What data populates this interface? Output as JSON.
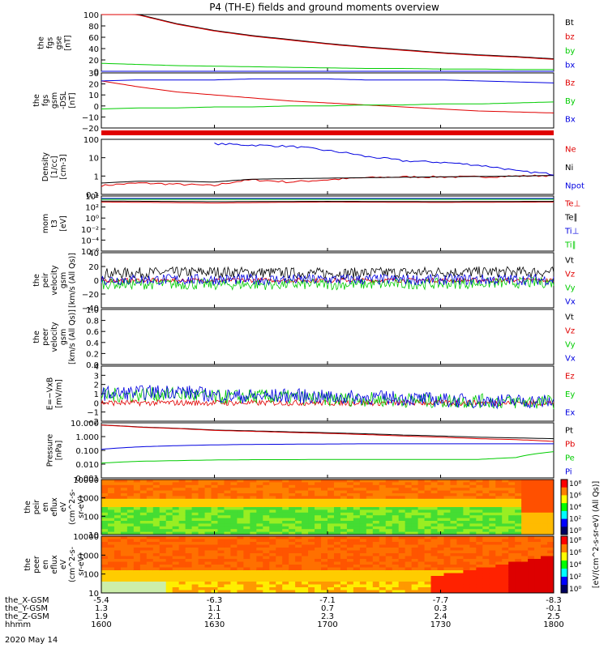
{
  "title": "P4 (TH-E) fields and ground moments overview",
  "date_label": "2020 May 14",
  "colors": {
    "black": "#000000",
    "red": "#e00000",
    "green": "#00cc00",
    "blue": "#0000e0",
    "teal": "#009090"
  },
  "ephemeris": {
    "labels": [
      "the_X-GSM",
      "the_Y-GSM",
      "the_Z-GSM",
      "hhmm"
    ],
    "columns": [
      {
        "x": "-5.4",
        "y": "1.3",
        "z": "1.9",
        "t": "1600"
      },
      {
        "x": "-6.3",
        "y": "1.1",
        "z": "2.1",
        "t": "1630"
      },
      {
        "x": "-7.1",
        "y": "0.7",
        "z": "2.3",
        "t": "1700"
      },
      {
        "x": "-7.7",
        "y": "0.3",
        "z": "2.4",
        "t": "1730"
      },
      {
        "x": "-8.3",
        "y": "-0.1",
        "z": "2.5",
        "t": "1800"
      }
    ]
  },
  "chart_data": [
    {
      "type": "line",
      "id": "fgs-gse",
      "ylabel": [
        "the",
        "fgs",
        "gse",
        "[nT]"
      ],
      "ylim": [
        0,
        100
      ],
      "y_ticks": [
        "0",
        "20",
        "40",
        "60",
        "80",
        "100"
      ],
      "x": [
        1600,
        1610,
        1620,
        1630,
        1640,
        1650,
        1700,
        1710,
        1720,
        1730,
        1740,
        1750,
        1800
      ],
      "series": [
        {
          "name": "Bt",
          "color": "black",
          "values": [
            108,
            100,
            84,
            72,
            63,
            56,
            49,
            43,
            38,
            33,
            29,
            26,
            22
          ]
        },
        {
          "name": "bz",
          "color": "red",
          "values": [
            107,
            99,
            83,
            71,
            62,
            55,
            48,
            42,
            37,
            32,
            28,
            25,
            21
          ]
        },
        {
          "name": "by",
          "color": "green",
          "values": [
            14,
            12,
            10,
            9,
            8,
            7,
            6,
            5,
            5,
            4,
            4,
            3,
            3
          ]
        },
        {
          "name": "bx",
          "color": "blue",
          "values": [
            -1,
            -2,
            -3,
            -3,
            -3,
            -2,
            -2,
            -2,
            -1,
            -1,
            -1,
            0,
            0
          ]
        }
      ]
    },
    {
      "type": "line",
      "id": "fgs-gsm",
      "ylabel": [
        "the",
        "fgs",
        "gsm",
        "-DSL",
        "[nT]"
      ],
      "ylim": [
        -25,
        30
      ],
      "y_ticks": [
        "−20",
        "−10",
        "0",
        "10",
        "20",
        "30"
      ],
      "x": [
        1600,
        1610,
        1620,
        1630,
        1640,
        1650,
        1700,
        1710,
        1720,
        1730,
        1740,
        1750,
        1800
      ],
      "series": [
        {
          "name": "Bz",
          "color": "red",
          "values": [
            22,
            16,
            11,
            8,
            5,
            2,
            0,
            -2,
            -4,
            -6,
            -8,
            -9,
            -10
          ]
        },
        {
          "name": "By",
          "color": "green",
          "values": [
            -6,
            -5,
            -5,
            -4,
            -4,
            -3,
            -3,
            -2,
            -2,
            -1,
            -1,
            0,
            1
          ]
        },
        {
          "name": "Bx",
          "color": "blue",
          "values": [
            22,
            23,
            23,
            23,
            24,
            24,
            24,
            23,
            23,
            23,
            22,
            21,
            20
          ]
        }
      ]
    },
    {
      "type": "line",
      "id": "density",
      "ylabel": [
        "Density",
        "[1/cc]",
        "[cm-3]"
      ],
      "scale": "log",
      "ylim": [
        0.05,
        300
      ],
      "y_ticks": [
        "0.1",
        "1",
        "10",
        "100"
      ],
      "x": [
        1600,
        1610,
        1620,
        1630,
        1640,
        1650,
        1700,
        1710,
        1720,
        1730,
        1740,
        1750,
        1800
      ],
      "series": [
        {
          "name": "Ne",
          "color": "red",
          "values": [
            0.2,
            0.3,
            0.25,
            0.2,
            0.5,
            0.35,
            0.5,
            0.7,
            0.8,
            0.8,
            0.8,
            0.9,
            1.0
          ]
        },
        {
          "name": "Ni",
          "color": "black",
          "values": [
            0.3,
            0.4,
            0.4,
            0.35,
            0.55,
            0.6,
            0.65,
            0.7,
            0.75,
            0.8,
            0.85,
            0.9,
            1.0
          ]
        },
        {
          "name": "Npot",
          "color": "blue",
          "values": [
            null,
            null,
            null,
            150,
            120,
            100,
            50,
            20,
            10,
            8,
            5,
            2,
            1.2
          ]
        }
      ]
    },
    {
      "type": "line",
      "id": "mom-temp",
      "ylabel": [
        "mom",
        "t3",
        "[eV]"
      ],
      "scale": "log",
      "ylim": [
        1e-08,
        10000
      ],
      "y_ticks": [
        "10⁻⁶",
        "10⁻⁴",
        "10⁻²",
        "10⁰",
        "10²",
        "10⁴"
      ],
      "x": [
        1600,
        1630,
        1700,
        1730,
        1800
      ],
      "series": [
        {
          "name": "Te⊥",
          "color": "red",
          "values": [
            500,
            300,
            500,
            400,
            500
          ]
        },
        {
          "name": "Te∥",
          "color": "black",
          "values": [
            800,
            600,
            700,
            600,
            700
          ]
        },
        {
          "name": "Ti⊥",
          "color": "blue",
          "values": [
            3000,
            3000,
            3000,
            3000,
            3000
          ]
        },
        {
          "name": "Ti∥",
          "color": "green",
          "values": [
            2000,
            2000,
            2000,
            2000,
            2000
          ]
        }
      ]
    },
    {
      "type": "line",
      "id": "peir-velocity",
      "ylabel": [
        "the",
        "peir",
        "velocity",
        "gsm",
        "[km/s (All Qs)]"
      ],
      "ylim": [
        -40,
        40
      ],
      "y_ticks": [
        "−40",
        "−20",
        "0",
        "20",
        "40"
      ],
      "x": [
        1600,
        1630,
        1700,
        1730,
        1800
      ],
      "series": [
        {
          "name": "Vt",
          "color": "black",
          "values": [
            10,
            12,
            10,
            12,
            12
          ]
        },
        {
          "name": "Vz",
          "color": "red",
          "values": [
            0,
            0,
            0,
            0,
            0
          ]
        },
        {
          "name": "Vy",
          "color": "green",
          "values": [
            -5,
            -6,
            -6,
            -5,
            -3
          ]
        },
        {
          "name": "Vx",
          "color": "blue",
          "values": [
            1,
            1,
            1,
            1,
            1
          ]
        }
      ]
    },
    {
      "type": "line",
      "id": "peer-velocity",
      "ylabel": [
        "the",
        "peer",
        "velocity",
        "gsm",
        "[km/s (All Qs)]"
      ],
      "ylim": [
        0,
        1
      ],
      "y_ticks": [
        "0.0",
        "0.2",
        "0.4",
        "0.6",
        "0.8",
        "1.0"
      ],
      "series": [
        {
          "name": "Vt",
          "color": "black",
          "values": []
        },
        {
          "name": "Vz",
          "color": "red",
          "values": []
        },
        {
          "name": "Vy",
          "color": "green",
          "values": []
        },
        {
          "name": "Vx",
          "color": "blue",
          "values": []
        }
      ]
    },
    {
      "type": "line",
      "id": "e-field",
      "ylabel": [
        "E=−VxB",
        "[mV/m]"
      ],
      "ylim": [
        -2,
        4
      ],
      "y_ticks": [
        "−2",
        "−1",
        "0",
        "1",
        "2",
        "3",
        "4"
      ],
      "x": [
        1600,
        1610,
        1620,
        1630,
        1640,
        1650,
        1700,
        1710,
        1720,
        1730,
        1740,
        1750,
        1800
      ],
      "series": [
        {
          "name": "Ez",
          "color": "red",
          "values": [
            0,
            0,
            0,
            0,
            0,
            0,
            0,
            0,
            0,
            0,
            0,
            0,
            0
          ]
        },
        {
          "name": "Ey",
          "color": "green",
          "values": [
            0.8,
            0.9,
            1.0,
            0.6,
            0.7,
            0.6,
            0.4,
            0.4,
            0.3,
            0.2,
            0.2,
            0.1,
            0.1
          ]
        },
        {
          "name": "Ex",
          "color": "blue",
          "values": [
            1.0,
            1.1,
            1.3,
            0.8,
            0.7,
            0.8,
            0.6,
            0.6,
            0.5,
            0.3,
            0.2,
            0.2,
            0.1
          ]
        }
      ]
    },
    {
      "type": "line",
      "id": "pressure",
      "ylabel": [
        "Pressure",
        "[nPa]"
      ],
      "scale": "log",
      "ylim": [
        0.001,
        10
      ],
      "y_ticks": [
        "0.001",
        "0.010",
        "0.100",
        "1.000",
        "10.000"
      ],
      "x": [
        1600,
        1610,
        1620,
        1630,
        1640,
        1650,
        1700,
        1710,
        1720,
        1730,
        1740,
        1750,
        1800
      ],
      "series": [
        {
          "name": "Pt",
          "color": "black",
          "values": [
            7,
            5,
            4,
            3,
            2.6,
            2.2,
            1.9,
            1.6,
            1.3,
            1.1,
            0.9,
            0.8,
            0.7
          ]
        },
        {
          "name": "Pb",
          "color": "red",
          "values": [
            6.8,
            4.8,
            3.8,
            2.8,
            2.4,
            2.0,
            1.7,
            1.4,
            1.1,
            0.9,
            0.7,
            0.6,
            0.45
          ]
        },
        {
          "name": "Pe",
          "color": "green",
          "values": [
            0.012,
            0.016,
            0.018,
            0.02,
            0.021,
            0.021,
            0.022,
            0.022,
            0.022,
            0.022,
            0.022,
            0.03,
            0.08
          ]
        },
        {
          "name": "Pi",
          "color": "blue",
          "values": [
            0.12,
            0.18,
            0.22,
            0.25,
            0.27,
            0.28,
            0.29,
            0.3,
            0.3,
            0.3,
            0.3,
            0.3,
            0.3
          ]
        }
      ]
    },
    {
      "type": "heatmap",
      "id": "peir-en-eflux",
      "ylabel": [
        "the",
        "peir",
        "en",
        "eflux",
        "eV",
        "(cm^2-s-",
        "sr-eV)"
      ],
      "scale": "log",
      "ylim": [
        5,
        25000
      ],
      "y_ticks": [
        "10",
        "100",
        "1000",
        "10000"
      ],
      "note": "ion energy spectrogram: orange/red above ~1000 eV, green/yellow below"
    },
    {
      "type": "heatmap",
      "id": "peer-en-eflux",
      "ylabel": [
        "the",
        "peer",
        "en",
        "eflux",
        "eV",
        "(cm^2-s-",
        "sr-eV)"
      ],
      "scale": "log",
      "ylim": [
        5,
        25000
      ],
      "y_ticks": [
        "10",
        "100",
        "1000",
        "10000"
      ],
      "note": "electron energy spectrogram: mostly orange/yellow, red growth after 1730"
    }
  ],
  "colorbar": {
    "label": "[eV/(cm^2-s-sr-eV) (All Qs)]",
    "ticks_top": [
      "10⁸",
      "10⁶",
      "10⁴",
      "10²",
      "10⁰"
    ],
    "ticks_bottom": [
      "10⁸",
      "10⁶",
      "10⁴",
      "10²",
      "10⁰"
    ]
  }
}
